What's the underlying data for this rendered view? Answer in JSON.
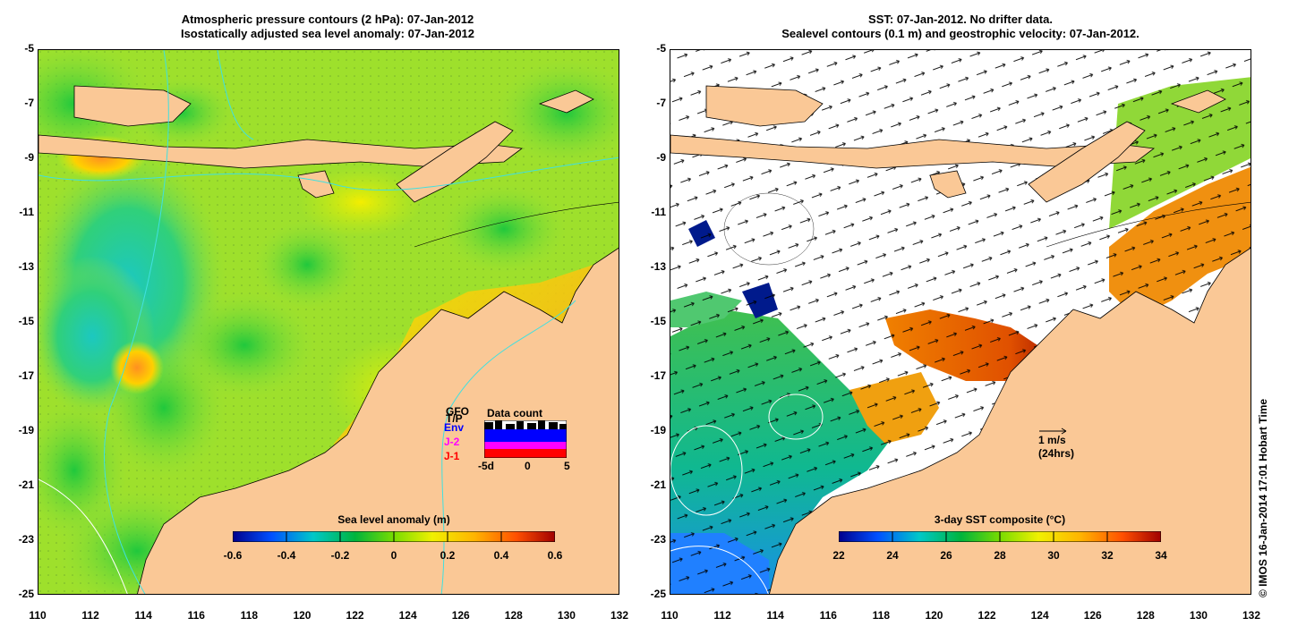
{
  "left": {
    "title_line1": "Atmospheric pressure contours (2 hPa): 07-Jan-2012",
    "title_line2": "Isostatically adjusted sea level anomaly: 07-Jan-2012",
    "colorbar": {
      "label": "Sea level anomaly (m)",
      "ticks": [
        "-0.6",
        "-0.4",
        "-0.2",
        "0",
        "0.2",
        "0.4",
        "0.6"
      ]
    },
    "data_count": {
      "title": "Data count",
      "legend": [
        "GFO",
        "T/P",
        "Env",
        "J-2",
        "J-1"
      ],
      "legend_colors": [
        "#000000",
        "#000000",
        "#0000ff",
        "#ff00ff",
        "#ff0000"
      ],
      "xticks": [
        "-5d",
        "0",
        "5"
      ]
    }
  },
  "right": {
    "title_line1": "SST: 07-Jan-2012. No drifter data.",
    "title_line2": "Sealevel contours (0.1 m) and geostrophic velocity: 07-Jan-2012.",
    "colorbar": {
      "label": "3-day SST composite (°C)",
      "ticks": [
        "22",
        "24",
        "26",
        "28",
        "30",
        "32",
        "34"
      ]
    },
    "scale_arrow": {
      "line1": "1 m/s",
      "line2": "(24hrs)"
    }
  },
  "axes": {
    "y_ticks": [
      "-5",
      "-7",
      "-9",
      "-11",
      "-13",
      "-15",
      "-17",
      "-19",
      "-21",
      "-23",
      "-25"
    ],
    "x_ticks": [
      "110",
      "112",
      "114",
      "116",
      "118",
      "120",
      "122",
      "124",
      "126",
      "128",
      "130",
      "132"
    ]
  },
  "credit": "© IMOS 16-Jan-2014 17:01 Hobart Time",
  "colors": {
    "land": "#fac896",
    "ocean_base": "#8fe03a",
    "sla_scale": [
      "#00008c",
      "#0050ff",
      "#00c8c8",
      "#00b43c",
      "#78dc00",
      "#f0f000",
      "#ffb400",
      "#ff5000",
      "#a00000"
    ],
    "sst_scale": [
      "#00008c",
      "#0050ff",
      "#00c8c8",
      "#00b43c",
      "#78dc00",
      "#f0f000",
      "#ffb400",
      "#ff5000",
      "#a00000"
    ]
  }
}
